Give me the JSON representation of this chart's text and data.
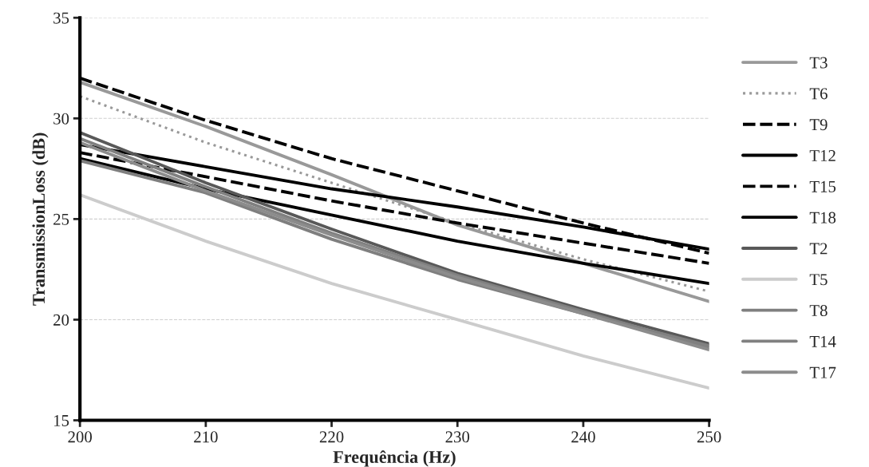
{
  "chart_data": {
    "type": "line",
    "xlabel": "Frequência (Hz)",
    "ylabel": "TransmissionLoss (dB)",
    "x": [
      200,
      210,
      220,
      230,
      240,
      250
    ],
    "xlim": [
      200,
      250
    ],
    "xticks": [
      200,
      210,
      220,
      230,
      240,
      250
    ],
    "ylim": [
      15,
      35
    ],
    "yticks": [
      15,
      20,
      25,
      30,
      35
    ],
    "grid": "y",
    "legend": "right",
    "series": [
      {
        "name": "T3",
        "color": "#999999",
        "line_style": "solid",
        "values": [
          31.8,
          29.6,
          27.2,
          24.7,
          22.8,
          20.9
        ]
      },
      {
        "name": "T6",
        "color": "#999999",
        "line_style": "dotted",
        "values": [
          31.1,
          28.8,
          26.8,
          24.8,
          23.0,
          21.4
        ]
      },
      {
        "name": "T9",
        "color": "#000000",
        "line_style": "dashed",
        "values": [
          32.0,
          29.9,
          28.0,
          26.4,
          24.8,
          23.3
        ]
      },
      {
        "name": "T12",
        "color": "#000000",
        "line_style": "solid",
        "values": [
          28.7,
          27.6,
          26.5,
          25.6,
          24.6,
          23.5
        ]
      },
      {
        "name": "T15",
        "color": "#000000",
        "line_style": "dashed",
        "values": [
          28.3,
          27.1,
          25.9,
          24.8,
          23.8,
          22.8
        ]
      },
      {
        "name": "T18",
        "color": "#000000",
        "line_style": "solid",
        "values": [
          28.0,
          26.5,
          25.2,
          23.9,
          22.8,
          21.8
        ]
      },
      {
        "name": "T2",
        "color": "#595959",
        "line_style": "solid",
        "values": [
          29.3,
          26.8,
          24.5,
          22.3,
          20.5,
          18.8
        ]
      },
      {
        "name": "T5",
        "color": "#cccccc",
        "line_style": "solid",
        "values": [
          26.2,
          23.9,
          21.8,
          20.0,
          18.2,
          16.6
        ]
      },
      {
        "name": "T8",
        "color": "#7f7f7f",
        "line_style": "solid",
        "values": [
          27.9,
          26.3,
          24.0,
          22.0,
          20.3,
          18.7
        ]
      },
      {
        "name": "T14",
        "color": "#808080",
        "line_style": "solid",
        "values": [
          29.0,
          26.6,
          24.3,
          22.2,
          20.4,
          18.6
        ]
      },
      {
        "name": "T17",
        "color": "#8c8c8c",
        "line_style": "solid",
        "values": [
          28.8,
          26.4,
          24.2,
          22.1,
          20.3,
          18.5
        ]
      }
    ]
  }
}
